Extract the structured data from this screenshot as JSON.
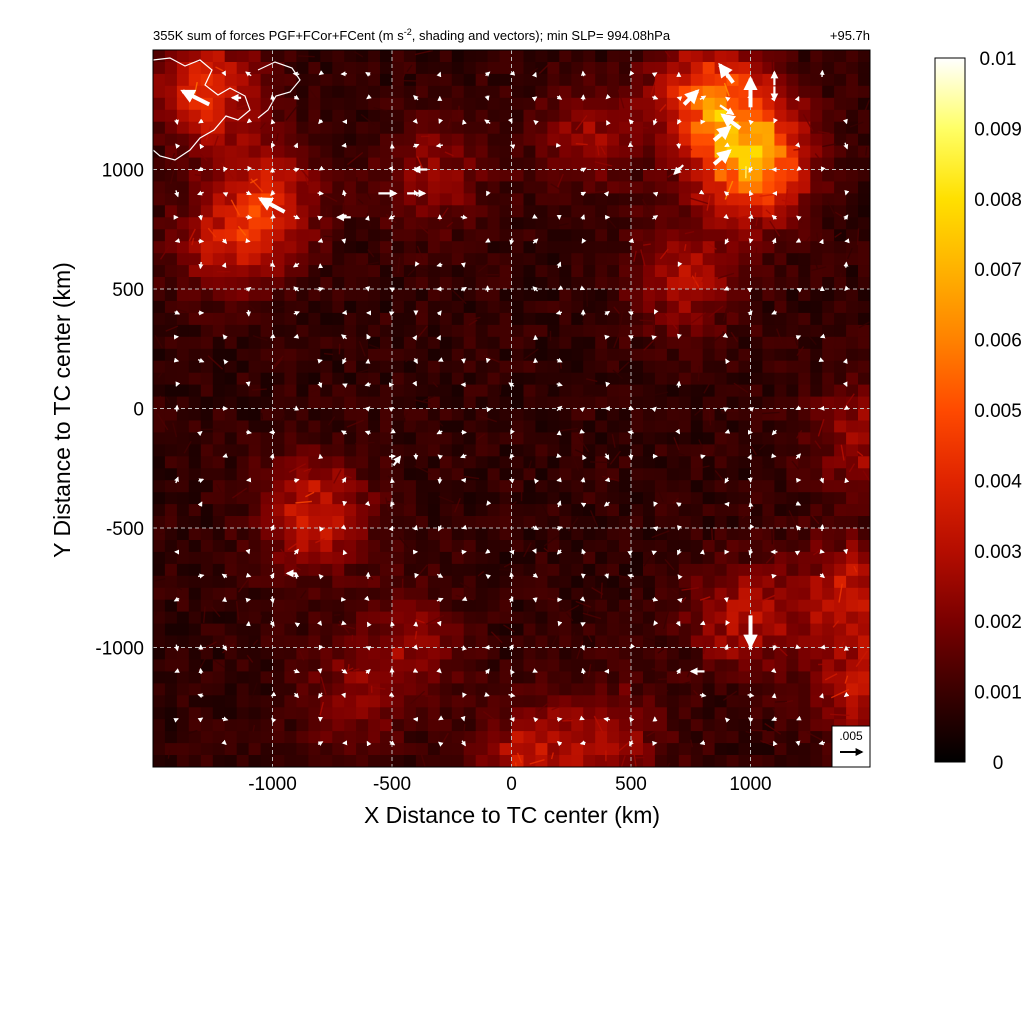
{
  "chart_data": {
    "type": "heatmap",
    "title": "355K sum of forces PGF+FCor+FCent (m s⁻², shading and vectors); min SLP= 994.08hPa",
    "title_parts": {
      "prefix": "355K sum of forces PGF+FCor+FCent (m s",
      "exponent": "-2",
      "suffix": ", shading and vectors); min SLP= 994.08hPa"
    },
    "time_label": "+95.7h",
    "xlabel": "X Distance to TC center (km)",
    "ylabel": "Y Distance to TC center (km)",
    "xlim": [
      -1500,
      1500
    ],
    "ylim": [
      -1500,
      1500
    ],
    "x_ticks": [
      -1000,
      -500,
      0,
      500,
      1000
    ],
    "y_ticks": [
      -1000,
      -500,
      0,
      500,
      1000
    ],
    "grid": true,
    "colorbar": {
      "min": 0,
      "max": 0.01,
      "ticks": [
        "0.01",
        "0.009",
        "0.008",
        "0.007",
        "0.006",
        "0.005",
        "0.004",
        "0.003",
        "0.002",
        "0.001",
        "0"
      ],
      "colormap": [
        "#000000",
        "#3a0000",
        "#7a0000",
        "#b50d00",
        "#e02400",
        "#ff4a00",
        "#ff8200",
        "#ffb200",
        "#ffe000",
        "#ffff66",
        "#ffffff"
      ]
    },
    "reference_vector": {
      "label": ".005",
      "magnitude": 0.005
    },
    "hotspots": [
      {
        "x": 950,
        "y": 1150,
        "intensity": 0.9
      },
      {
        "x": 800,
        "y": 1350,
        "intensity": 0.8
      },
      {
        "x": 1000,
        "y": 1000,
        "intensity": 0.7
      },
      {
        "x": -1300,
        "y": 1350,
        "intensity": 0.7
      },
      {
        "x": -1050,
        "y": 900,
        "intensity": 0.6
      },
      {
        "x": -1200,
        "y": 720,
        "intensity": 0.5
      },
      {
        "x": -850,
        "y": -420,
        "intensity": 0.6
      },
      {
        "x": 1400,
        "y": -750,
        "intensity": 0.55
      },
      {
        "x": 950,
        "y": -850,
        "intensity": 0.5
      },
      {
        "x": 700,
        "y": 580,
        "intensity": 0.45
      },
      {
        "x": 60,
        "y": -1450,
        "intensity": 0.55
      },
      {
        "x": 1450,
        "y": -1150,
        "intensity": 0.5
      },
      {
        "x": 1450,
        "y": -100,
        "intensity": 0.4
      },
      {
        "x": -450,
        "y": -950,
        "intensity": 0.35
      },
      {
        "x": 300,
        "y": 1150,
        "intensity": 0.35
      },
      {
        "x": 400,
        "y": -1350,
        "intensity": 0.35
      },
      {
        "x": -700,
        "y": -1200,
        "intensity": 0.3
      },
      {
        "x": -350,
        "y": 1000,
        "intensity": 0.35
      }
    ],
    "vectors_large": [
      {
        "x": -1320,
        "y": 1300,
        "u": -0.006,
        "v": 0.003
      },
      {
        "x": -1000,
        "y": 850,
        "u": -0.0055,
        "v": 0.003
      },
      {
        "x": 900,
        "y": 1400,
        "u": -0.003,
        "v": 0.004
      },
      {
        "x": 1000,
        "y": 1320,
        "u": 0.0,
        "v": 0.0065
      },
      {
        "x": 880,
        "y": 1150,
        "u": 0.0035,
        "v": 0.003
      },
      {
        "x": 880,
        "y": 1050,
        "u": 0.0035,
        "v": 0.003
      },
      {
        "x": 920,
        "y": 1200,
        "u": -0.004,
        "v": 0.003
      },
      {
        "x": 1000,
        "y": -930,
        "u": 0.0,
        "v": -0.007
      },
      {
        "x": -480,
        "y": -220,
        "u": 0.0015,
        "v": 0.002
      },
      {
        "x": -920,
        "y": -690,
        "u": -0.002,
        "v": 0.0
      },
      {
        "x": -520,
        "y": 900,
        "u": 0.004,
        "v": 0.0
      },
      {
        "x": -400,
        "y": 900,
        "u": 0.004,
        "v": 0.0
      },
      {
        "x": -700,
        "y": 800,
        "u": -0.003,
        "v": 0.0
      },
      {
        "x": -380,
        "y": 1000,
        "u": -0.003,
        "v": 0.0
      },
      {
        "x": 780,
        "y": -1100,
        "u": -0.003,
        "v": 0.0
      },
      {
        "x": -1150,
        "y": 1300,
        "u": -0.002,
        "v": 0.0
      },
      {
        "x": 700,
        "y": 1000,
        "u": -0.002,
        "v": -0.002
      },
      {
        "x": 1100,
        "y": 1380,
        "u": 0.0,
        "v": 0.003
      },
      {
        "x": 1100,
        "y": 1320,
        "u": 0.0,
        "v": -0.003
      },
      {
        "x": 750,
        "y": 1300,
        "u": 0.003,
        "v": 0.003
      },
      {
        "x": 900,
        "y": 1250,
        "u": 0.003,
        "v": -0.002
      }
    ],
    "vectors_small_magnitude": 0.0012
  }
}
